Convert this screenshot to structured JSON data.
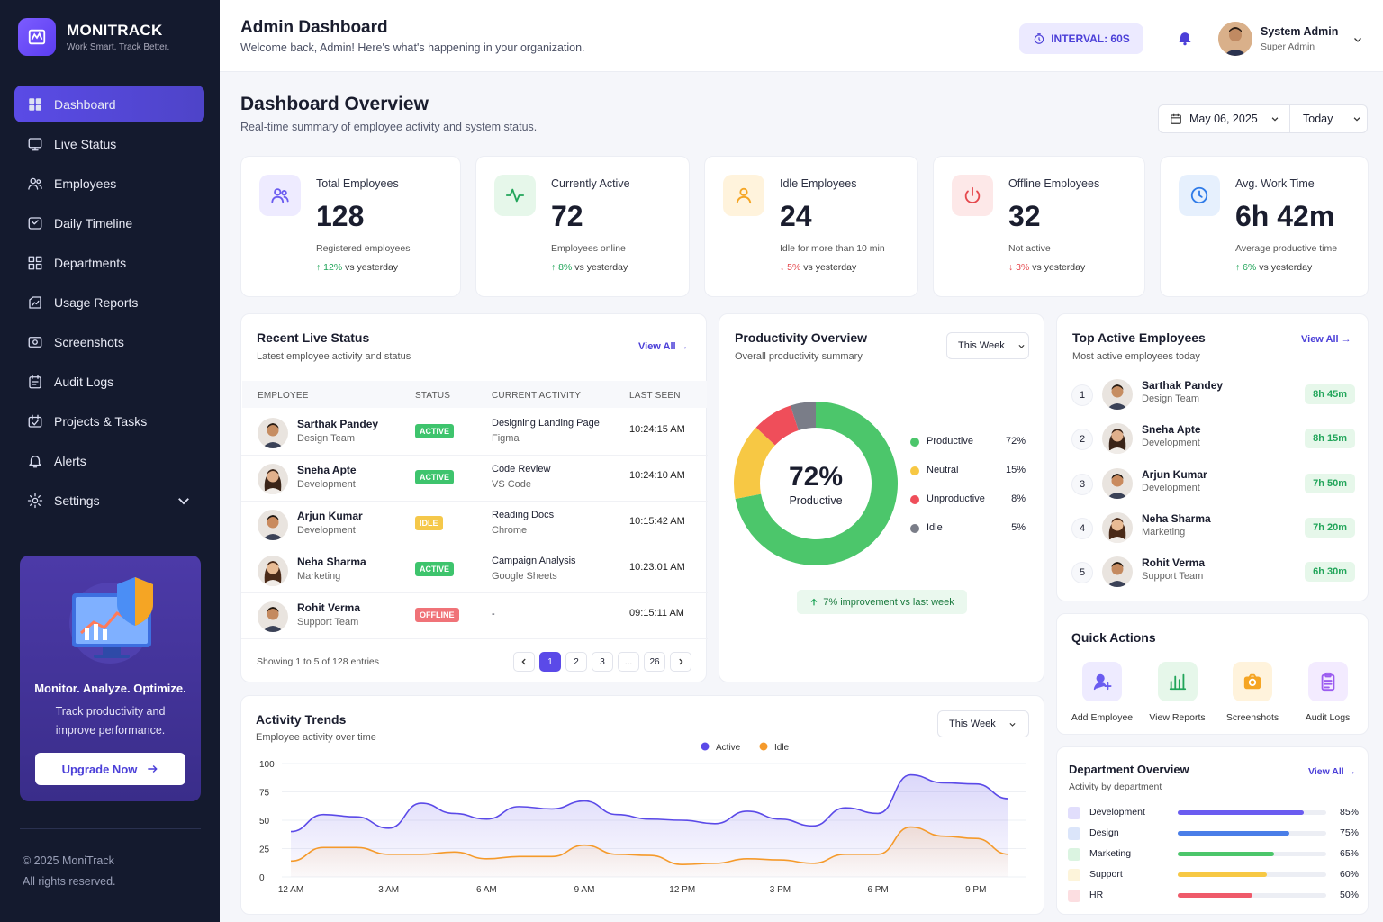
{
  "app": {
    "name": "MONITRACK",
    "tagline": "Work Smart. Track Better."
  },
  "nav": [
    {
      "label": "Dashboard",
      "icon": "dashboard-icon",
      "active": true
    },
    {
      "label": "Live Status",
      "icon": "monitor-icon"
    },
    {
      "label": "Employees",
      "icon": "users-icon"
    },
    {
      "label": "Daily Timeline",
      "icon": "timeline-icon"
    },
    {
      "label": "Departments",
      "icon": "departments-icon"
    },
    {
      "label": "Usage Reports",
      "icon": "reports-icon"
    },
    {
      "label": "Screenshots",
      "icon": "screenshot-icon"
    },
    {
      "label": "Audit Logs",
      "icon": "audit-icon"
    },
    {
      "label": "Projects & Tasks",
      "icon": "projects-icon"
    },
    {
      "label": "Alerts",
      "icon": "bell-icon"
    },
    {
      "label": "Settings",
      "icon": "gear-icon"
    }
  ],
  "promo": {
    "title": "Monitor. Analyze. Optimize.",
    "subtitle": "Track productivity and improve performance.",
    "button": "Upgrade Now"
  },
  "footer": {
    "copyright": "© 2025 MoniTrack",
    "rights": "All rights reserved."
  },
  "header": {
    "title": "Admin Dashboard",
    "subtitle": "Welcome back, Admin! Here's what's happening in your organization.",
    "interval": "INTERVAL: 60S",
    "user_name": "System Admin",
    "user_role": "Super Admin"
  },
  "overview": {
    "title": "Dashboard Overview",
    "subtitle": "Real-time summary of employee activity and system status.",
    "date": "May 06, 2025",
    "range": "Today"
  },
  "stats": [
    {
      "label": "Total Employees",
      "value": "128",
      "desc": "Registered employees",
      "trend": "12%",
      "trend_text": "vs yesterday",
      "dir": "up",
      "color": "#6b5cf0",
      "bg": "#eeebff",
      "icon": "users-icon"
    },
    {
      "label": "Currently Active",
      "value": "72",
      "desc": "Employees online",
      "trend": "8%",
      "trend_text": "vs yesterday",
      "dir": "up",
      "color": "#22a55a",
      "bg": "#e6f7ea",
      "icon": "activity-icon"
    },
    {
      "label": "Idle Employees",
      "value": "24",
      "desc": "Idle for more than 10 min",
      "trend": "5%",
      "trend_text": "vs yesterday",
      "dir": "down",
      "color": "#f5a524",
      "bg": "#fff3dc",
      "icon": "user-icon"
    },
    {
      "label": "Offline Employees",
      "value": "32",
      "desc": "Not active",
      "trend": "3%",
      "trend_text": "vs yesterday",
      "dir": "down",
      "color": "#e5484d",
      "bg": "#fde8e8",
      "icon": "power-icon"
    },
    {
      "label": "Avg. Work Time",
      "value": "6h 42m",
      "desc": "Average productive time",
      "trend": "6%",
      "trend_text": "vs yesterday",
      "dir": "up",
      "color": "#2f7be8",
      "bg": "#e6f0fd",
      "icon": "clock-icon"
    }
  ],
  "live": {
    "title": "Recent Live Status",
    "subtitle": "Latest employee activity and status",
    "view_all": "View All",
    "columns": [
      "EMPLOYEE",
      "STATUS",
      "CURRENT ACTIVITY",
      "LAST SEEN"
    ],
    "rows": [
      {
        "name": "Sarthak Pandey",
        "dept": "Design Team",
        "status": "ACTIVE",
        "activity": "Designing Landing Page",
        "app": "Figma",
        "seen": "10:24:15 AM"
      },
      {
        "name": "Sneha Apte",
        "dept": "Development",
        "status": "ACTIVE",
        "activity": "Code Review",
        "app": "VS Code",
        "seen": "10:24:10 AM"
      },
      {
        "name": "Arjun Kumar",
        "dept": "Development",
        "status": "IDLE",
        "activity": "Reading Docs",
        "app": "Chrome",
        "seen": "10:15:42 AM"
      },
      {
        "name": "Neha Sharma",
        "dept": "Marketing",
        "status": "ACTIVE",
        "activity": "Campaign Analysis",
        "app": "Google Sheets",
        "seen": "10:23:01 AM"
      },
      {
        "name": "Rohit Verma",
        "dept": "Support Team",
        "status": "OFFLINE",
        "activity": "-",
        "app": "",
        "seen": "09:15:11 AM"
      }
    ],
    "showing": "Showing 1 to 5 of 128 entries",
    "pages": [
      "1",
      "2",
      "3",
      "...",
      "26"
    ]
  },
  "productivity": {
    "title": "Productivity Overview",
    "subtitle": "Overall productivity summary",
    "range": "This Week",
    "center_value": "72%",
    "center_label": "Productive",
    "segments": [
      {
        "name": "Productive",
        "value": 72,
        "label": "72%",
        "color": "#4cc66b"
      },
      {
        "name": "Neutral",
        "value": 15,
        "label": "15%",
        "color": "#f7c844"
      },
      {
        "name": "Unproductive",
        "value": 8,
        "label": "8%",
        "color": "#ef4e5a"
      },
      {
        "name": "Idle",
        "value": 5,
        "label": "5%",
        "color": "#7a7d88"
      }
    ],
    "improvement": "7% improvement vs last week"
  },
  "top": {
    "title": "Top Active Employees",
    "subtitle": "Most active employees today",
    "view_all": "View All",
    "rows": [
      {
        "rank": "1",
        "name": "Sarthak Pandey",
        "dept": "Design Team",
        "time": "8h 45m"
      },
      {
        "rank": "2",
        "name": "Sneha Apte",
        "dept": "Development",
        "time": "8h 15m"
      },
      {
        "rank": "3",
        "name": "Arjun Kumar",
        "dept": "Development",
        "time": "7h 50m"
      },
      {
        "rank": "4",
        "name": "Neha Sharma",
        "dept": "Marketing",
        "time": "7h 20m"
      },
      {
        "rank": "5",
        "name": "Rohit Verma",
        "dept": "Support Team",
        "time": "6h 30m"
      }
    ]
  },
  "quick": {
    "title": "Quick Actions",
    "items": [
      {
        "label": "Add Employee",
        "icon": "add-user-icon",
        "color": "#6b5cf0",
        "bg": "#eeebff"
      },
      {
        "label": "View Reports",
        "icon": "bar-chart-icon",
        "color": "#22a55a",
        "bg": "#e6f7ea"
      },
      {
        "label": "Screenshots",
        "icon": "camera-icon",
        "color": "#f5a524",
        "bg": "#fff3dc"
      },
      {
        "label": "Audit Logs",
        "icon": "clipboard-icon",
        "color": "#9b5cf0",
        "bg": "#f3ebff"
      }
    ]
  },
  "departments": {
    "title": "Department Overview",
    "subtitle": "Activity by department",
    "view_all": "View All",
    "rows": [
      {
        "name": "Development",
        "value": 85,
        "label": "85%",
        "color": "#6b5cf0"
      },
      {
        "name": "Design",
        "value": 75,
        "label": "75%",
        "color": "#4a7ee8"
      },
      {
        "name": "Marketing",
        "value": 65,
        "label": "65%",
        "color": "#4cc66b"
      },
      {
        "name": "Support",
        "value": 60,
        "label": "60%",
        "color": "#f7c844"
      },
      {
        "name": "HR",
        "value": 50,
        "label": "50%",
        "color": "#ef5a6a"
      }
    ]
  },
  "trends": {
    "title": "Activity Trends",
    "subtitle": "Employee activity over time",
    "range": "This Week"
  },
  "chart_data": {
    "type": "area",
    "title": "Activity Trends",
    "x": [
      "12 AM",
      "1 AM",
      "2 AM",
      "3 AM",
      "4 AM",
      "5 AM",
      "6 AM",
      "7 AM",
      "8 AM",
      "9 AM",
      "10 AM",
      "11 AM",
      "12 PM",
      "1 PM",
      "2 PM",
      "3 PM",
      "4 PM",
      "5 PM",
      "6 PM",
      "7 PM",
      "8 PM",
      "9 PM",
      "10 PM"
    ],
    "x_ticks": [
      "12 AM",
      "3 AM",
      "6 AM",
      "9 AM",
      "12 PM",
      "3 PM",
      "6 PM",
      "9 PM"
    ],
    "ylim": [
      0,
      100
    ],
    "y_ticks": [
      0,
      25,
      50,
      75,
      100
    ],
    "series": [
      {
        "name": "Active",
        "color": "#5b4ae8",
        "values": [
          40,
          55,
          53,
          43,
          65,
          56,
          51,
          62,
          60,
          67,
          55,
          51,
          50,
          47,
          58,
          51,
          45,
          61,
          56,
          90,
          83,
          82,
          69
        ]
      },
      {
        "name": "Idle",
        "color": "#f59a2b",
        "values": [
          14,
          26,
          26,
          20,
          20,
          22,
          16,
          18,
          18,
          28,
          20,
          19,
          11,
          12,
          16,
          15,
          12,
          20,
          20,
          44,
          36,
          34,
          20
        ]
      }
    ],
    "grid": true,
    "legend": "top-center"
  }
}
